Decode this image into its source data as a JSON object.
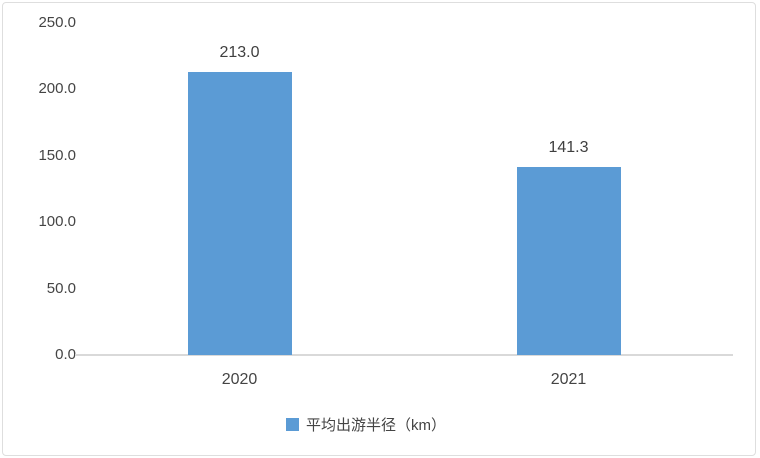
{
  "chart_data": {
    "type": "bar",
    "categories": [
      "2020",
      "2021"
    ],
    "series": [
      {
        "name": "平均出游半径（km）",
        "values": [
          213.0,
          141.3
        ]
      }
    ],
    "data_labels": [
      "213.0",
      "141.3"
    ],
    "title": "",
    "xlabel": "",
    "ylabel": "",
    "ylim": [
      0,
      250
    ],
    "ytick_labels": [
      "0.0",
      "50.0",
      "100.0",
      "150.0",
      "200.0",
      "250.0"
    ],
    "grid": false,
    "legend": {
      "position": "bottom",
      "label": "平均出游半径（km）"
    },
    "colors": {
      "bar": "#5B9BD5",
      "axis_line": "#D9D9D9",
      "text": "#444444",
      "frame_border": "#DEDEDE"
    }
  }
}
